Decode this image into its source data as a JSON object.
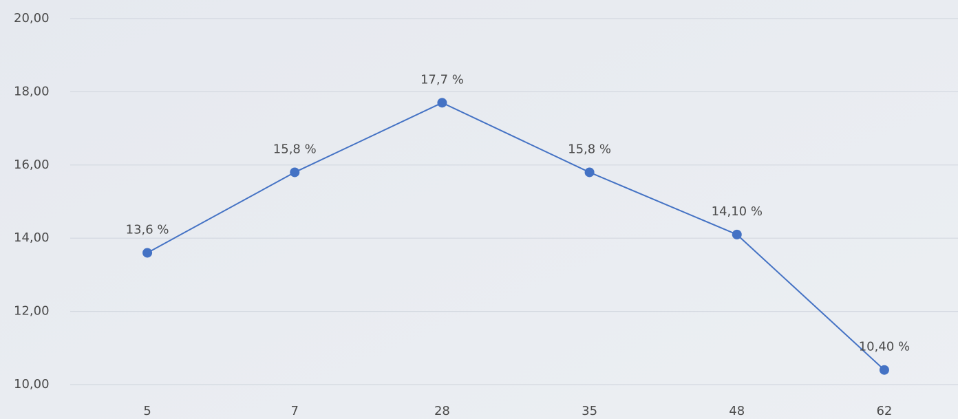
{
  "chart_data": {
    "type": "line",
    "categories": [
      "5",
      "7",
      "28",
      "35",
      "48",
      "62"
    ],
    "series": [
      {
        "color": "#4472c4",
        "values": [
          13.6,
          15.8,
          17.7,
          15.8,
          14.1,
          10.4
        ],
        "value_labels": [
          "13,6 %",
          "15,8 %",
          "17,7 %",
          "15,8 %",
          "14,10 %",
          "10,40 %"
        ]
      }
    ],
    "ylim": [
      10,
      20
    ],
    "yticks": [
      {
        "value": 10,
        "label": "10,00"
      },
      {
        "value": 12,
        "label": "12,00"
      },
      {
        "value": 14,
        "label": "14,00"
      },
      {
        "value": 16,
        "label": "16,00"
      },
      {
        "value": 18,
        "label": "18,00"
      },
      {
        "value": 20,
        "label": "20,00"
      }
    ],
    "grid": true
  }
}
